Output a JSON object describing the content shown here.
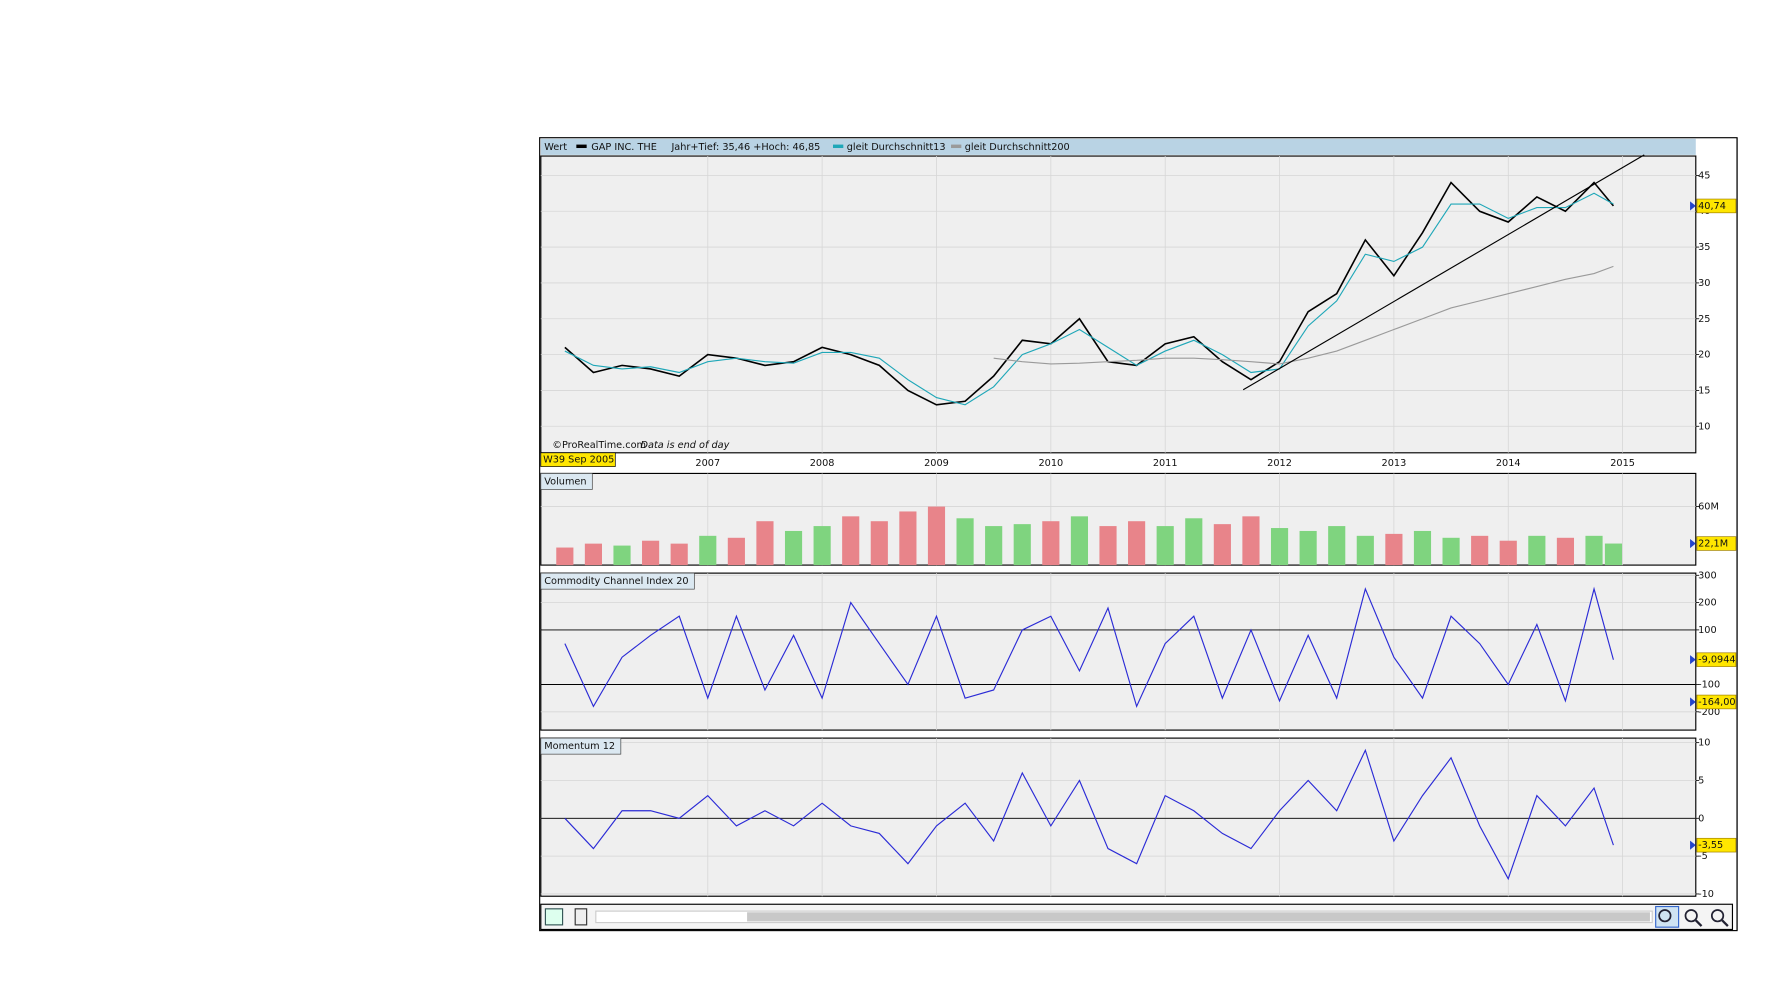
{
  "chart_data": [
    {
      "type": "line",
      "label": "Wert",
      "note": "Jahr+Tief: 35,46 +Hoch: 46,85",
      "annotations": [
        "©ProRealTime.com",
        "Data is end of day"
      ],
      "date_label": "W39 Sep 2005",
      "x": [
        2005.75,
        2006.0,
        2006.25,
        2006.5,
        2006.75,
        2007.0,
        2007.25,
        2007.5,
        2007.75,
        2008.0,
        2008.25,
        2008.5,
        2008.75,
        2009.0,
        2009.25,
        2009.5,
        2009.75,
        2010.0,
        2010.25,
        2010.5,
        2010.75,
        2011.0,
        2011.25,
        2011.5,
        2011.75,
        2012.0,
        2012.25,
        2012.5,
        2012.75,
        2013.0,
        2013.25,
        2013.5,
        2013.75,
        2014.0,
        2014.25,
        2014.5,
        2014.75,
        2014.92
      ],
      "xlim": [
        2005.54,
        2015.64
      ],
      "xticks": [
        2007,
        2008,
        2009,
        2010,
        2011,
        2012,
        2013,
        2014,
        2015
      ],
      "ylim": [
        6.3,
        47.7
      ],
      "yticks": [
        10,
        15,
        20,
        25,
        30,
        35,
        40,
        45
      ],
      "grid": true,
      "series": [
        {
          "name": "GAP INC. THE",
          "color": "#000000",
          "values": [
            21,
            17.5,
            18.5,
            18,
            17,
            20,
            19.5,
            18.5,
            19,
            21,
            20,
            18.5,
            15,
            13,
            13.5,
            17,
            22,
            21.5,
            25,
            19,
            18.5,
            21.5,
            22.5,
            19,
            16.5,
            19,
            26,
            28.5,
            36,
            31,
            37,
            44,
            40,
            38.5,
            42,
            40,
            44,
            40.74
          ]
        },
        {
          "name": "gleit Durchschnitt13",
          "color": "#1fa7b8",
          "values": [
            20.5,
            18.5,
            18,
            18.3,
            17.5,
            19,
            19.5,
            19,
            18.8,
            20.3,
            20.3,
            19.5,
            16.5,
            14,
            13,
            15.5,
            20,
            21.5,
            23.5,
            21,
            18.5,
            20.5,
            22,
            20,
            17.5,
            18,
            24,
            27.5,
            34,
            33,
            35,
            41,
            41,
            39,
            40.5,
            40.5,
            42.5,
            41
          ]
        },
        {
          "name": "gleit Durchschnitt200",
          "color": "#9a9a9a",
          "values": [
            null,
            null,
            null,
            null,
            null,
            null,
            null,
            null,
            null,
            null,
            null,
            null,
            null,
            null,
            null,
            19.5,
            19,
            18.7,
            18.8,
            19,
            19.2,
            19.5,
            19.5,
            19.3,
            19,
            18.7,
            19.5,
            20.5,
            22,
            23.5,
            25,
            26.5,
            27.5,
            28.5,
            29.5,
            30.5,
            31.3,
            32.3
          ]
        }
      ],
      "markers": [
        {
          "value": 40.74,
          "label": "40,74"
        }
      ]
    },
    {
      "type": "bar",
      "label": "Volumen",
      "ylim": [
        0,
        94000000
      ],
      "yticks": [
        {
          "value": 60000000,
          "label": "60M"
        }
      ],
      "grid": true,
      "values": [
        18000000,
        22000000,
        20000000,
        25000000,
        22000000,
        30000000,
        28000000,
        45000000,
        35000000,
        40000000,
        50000000,
        45000000,
        55000000,
        60000000,
        48000000,
        40000000,
        42000000,
        45000000,
        50000000,
        40000000,
        45000000,
        40000000,
        48000000,
        42000000,
        50000000,
        38000000,
        35000000,
        40000000,
        30000000,
        32000000,
        35000000,
        28000000,
        30000000,
        25000000,
        30000000,
        28000000,
        30000000,
        22100000
      ],
      "colors": [
        "#e8848a",
        "#e8848a",
        "#7fd47f",
        "#e8848a",
        "#e8848a",
        "#7fd47f",
        "#e8848a",
        "#e8848a",
        "#7fd47f",
        "#7fd47f",
        "#e8848a",
        "#e8848a",
        "#e8848a",
        "#e8848a",
        "#7fd47f",
        "#7fd47f",
        "#7fd47f",
        "#e8848a",
        "#7fd47f",
        "#e8848a",
        "#e8848a",
        "#7fd47f",
        "#7fd47f",
        "#e8848a",
        "#e8848a",
        "#7fd47f",
        "#7fd47f",
        "#7fd47f",
        "#7fd47f",
        "#e8848a",
        "#7fd47f",
        "#7fd47f",
        "#e8848a",
        "#e8848a",
        "#7fd47f",
        "#e8848a",
        "#7fd47f",
        "#7fd47f"
      ],
      "markers": [
        {
          "value": 22100000,
          "label": "22,1M"
        }
      ]
    },
    {
      "type": "line",
      "label": "Commodity Channel Index 20",
      "ylim": [
        -267,
        308
      ],
      "yticks": [
        300,
        200,
        100,
        -100,
        -200
      ],
      "grid": true,
      "reference_lines": [
        100,
        -100
      ],
      "series": [
        {
          "color": "#2b2bd6",
          "values": [
            50,
            -180,
            0,
            80,
            150,
            -150,
            150,
            -120,
            80,
            -150,
            200,
            50,
            -100,
            150,
            -150,
            -120,
            100,
            150,
            -50,
            180,
            -180,
            50,
            150,
            -150,
            100,
            -160,
            80,
            -150,
            250,
            0,
            -150,
            150,
            50,
            -100,
            120,
            -160,
            250,
            -9.0944
          ]
        }
      ],
      "markers": [
        {
          "value": -9.0944,
          "label": "-9,0944"
        },
        {
          "value": -164,
          "label": "-164,00"
        }
      ]
    },
    {
      "type": "line",
      "label": "Momentum 12",
      "ylim": [
        -10.3,
        10.6
      ],
      "yticks": [
        10,
        5,
        0,
        -5,
        -10
      ],
      "grid": true,
      "reference_lines": [
        0
      ],
      "series": [
        {
          "color": "#2b2bd6",
          "values": [
            0,
            -4,
            1,
            1,
            0,
            3,
            -1,
            1,
            -1,
            2,
            -1,
            -2,
            -6,
            -1,
            2,
            -3,
            6,
            -1,
            5,
            -4,
            -6,
            3,
            1,
            -2,
            -4,
            1,
            5,
            1,
            9,
            -3,
            3,
            8,
            -1,
            -8,
            3,
            -1,
            4,
            -3.55
          ]
        }
      ],
      "markers": [
        {
          "value": -3.55,
          "label": "-3,55"
        }
      ]
    }
  ]
}
